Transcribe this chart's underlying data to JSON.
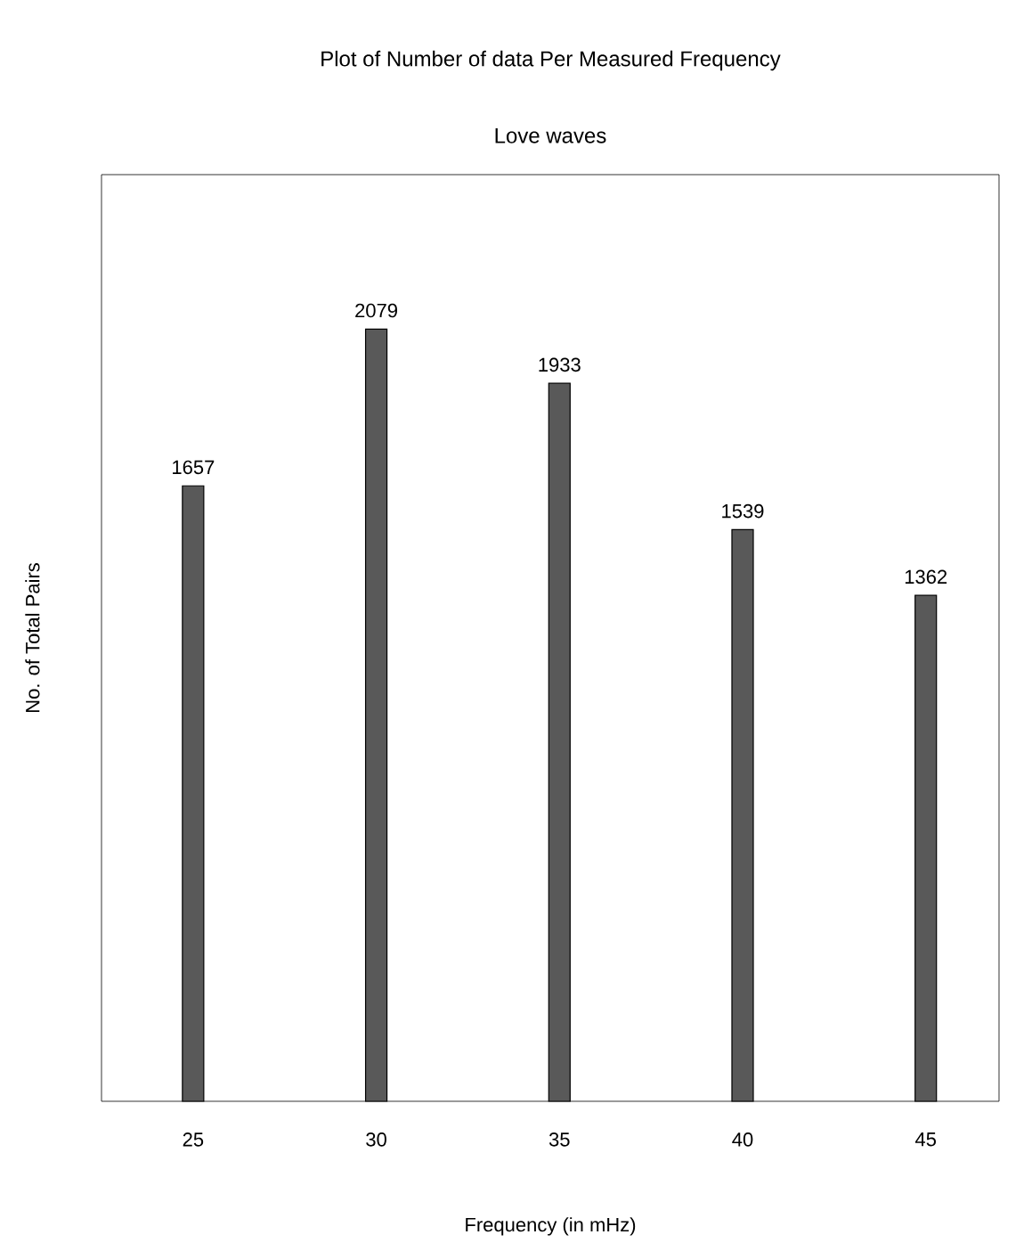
{
  "chart_data": {
    "type": "bar",
    "title": "Plot of Number of data Per Measured Frequency",
    "subtitle": "Love waves",
    "xlabel": "Frequency (in mHz)",
    "ylabel": "No. of Total Pairs",
    "categories": [
      "25",
      "30",
      "35",
      "40",
      "45"
    ],
    "values": [
      1657,
      2079,
      1933,
      1539,
      1362
    ],
    "color": "#595959",
    "data_labels": true
  }
}
